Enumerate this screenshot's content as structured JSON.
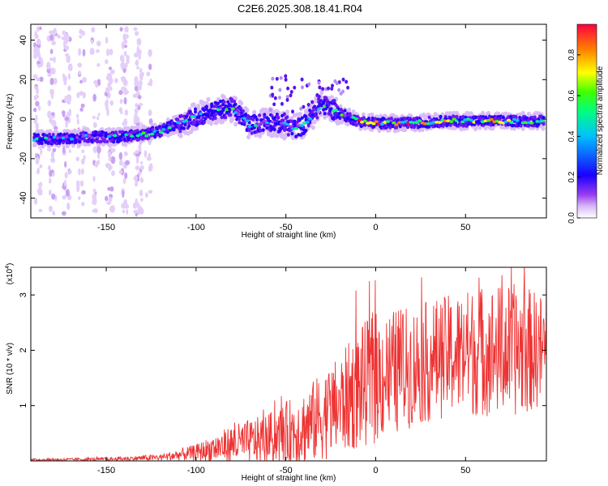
{
  "title": "C2E6.2025.308.18.41.R04",
  "chart_data": [
    {
      "type": "heatmap",
      "title": "C2E6.2025.308.18.41.R04",
      "xlabel": "Height of straight line (km)",
      "ylabel": "Frequency (Hz)",
      "xlim": [
        -192,
        95
      ],
      "ylim": [
        -50,
        48
      ],
      "xticks": [
        -150,
        -100,
        -50,
        0,
        50
      ],
      "yticks": [
        -40,
        -20,
        0,
        20,
        40
      ],
      "colorbar": {
        "label": "Normalized spectral amplitude",
        "range": [
          0.0,
          0.95
        ],
        "ticks": [
          0.0,
          0.2,
          0.4,
          0.6,
          0.8
        ],
        "colormap": [
          "#ffffff",
          "#d8b8f8",
          "#9a3cf0",
          "#1a00ff",
          "#00bfff",
          "#00ff80",
          "#40ff00",
          "#ffff00",
          "#ff8000",
          "#ff0040"
        ]
      },
      "ridge": {
        "x": [
          -190,
          -175,
          -160,
          -145,
          -130,
          -120,
          -110,
          -100,
          -90,
          -85,
          -80,
          -70,
          -60,
          -50,
          -45,
          -40,
          -35,
          -30,
          -25,
          -20,
          -10,
          0,
          20,
          40,
          60,
          80,
          95
        ],
        "y": [
          -10,
          -10,
          -9,
          -9,
          -8,
          -6,
          -2,
          1,
          4,
          5,
          6,
          -3,
          -1,
          -3,
          -5,
          -3,
          2,
          8,
          5,
          3,
          -1,
          -2,
          -2,
          -1,
          -1,
          -1,
          -1
        ]
      }
    },
    {
      "type": "line",
      "xlabel": "Height of straight line (km)",
      "ylabel": "SNR (10 * v/v)",
      "y_multiplier": "(x10",
      "y_multiplier_exp": "4",
      "y_multiplier_close": ")",
      "xlim": [
        -192,
        95
      ],
      "ylim": [
        0,
        3.5
      ],
      "xticks": [
        -150,
        -100,
        -50,
        0,
        50
      ],
      "yticks": [
        1,
        2,
        3
      ],
      "series": [
        {
          "name": "SNR",
          "color": "#ee3333",
          "envelope_x": [
            -192,
            -150,
            -120,
            -100,
            -80,
            -60,
            -40,
            -20,
            -10,
            0,
            20,
            40,
            60,
            80,
            95
          ],
          "envelope_mean": [
            0.02,
            0.03,
            0.06,
            0.15,
            0.3,
            0.4,
            0.6,
            1.0,
            1.3,
            1.5,
            1.7,
            1.9,
            2.0,
            2.0,
            2.0
          ],
          "envelope_amp": [
            0.02,
            0.03,
            0.06,
            0.15,
            0.35,
            0.45,
            0.7,
            0.9,
            1.1,
            1.2,
            1.1,
            1.1,
            1.2,
            1.2,
            1.0
          ]
        }
      ]
    }
  ]
}
